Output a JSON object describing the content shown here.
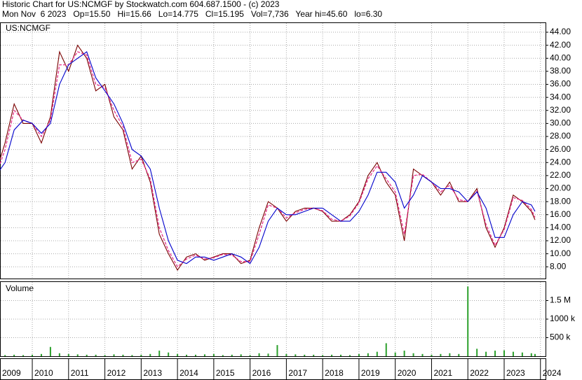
{
  "header": {
    "line1": "Historic Chart for US:NCMGF by Stockwatch.com 604.687.1500 - (c) 2023",
    "line2": "Mon Nov  6 2023   Op=15.50   Hi=15.66   Lo=14.775   Cl=15.195   Vol=7,736   Year hi=45.60   lo=6.30"
  },
  "chart_data": [
    {
      "type": "line",
      "label": "US:NCMGF",
      "x": [
        2009.0,
        2009.25,
        2009.5,
        2009.75,
        2010.0,
        2010.25,
        2010.5,
        2010.75,
        2011.0,
        2011.25,
        2011.5,
        2011.75,
        2012.0,
        2012.25,
        2012.5,
        2012.75,
        2013.0,
        2013.25,
        2013.5,
        2013.75,
        2014.0,
        2014.25,
        2014.5,
        2014.75,
        2015.0,
        2015.25,
        2015.5,
        2015.75,
        2016.0,
        2016.25,
        2016.5,
        2016.75,
        2017.0,
        2017.25,
        2017.5,
        2017.75,
        2018.0,
        2018.25,
        2018.5,
        2018.75,
        2019.0,
        2019.25,
        2019.5,
        2019.75,
        2020.0,
        2020.25,
        2020.5,
        2020.75,
        2021.0,
        2021.25,
        2021.5,
        2021.75,
        2022.0,
        2022.25,
        2022.5,
        2022.75,
        2023.0,
        2023.25,
        2023.5,
        2023.75,
        2023.85
      ],
      "series": [
        {
          "color": "#7a0000",
          "values": [
            22.5,
            27,
            33,
            30,
            30,
            27,
            31,
            41,
            38,
            42,
            40,
            35,
            36,
            31,
            29,
            23,
            25,
            21,
            13,
            10,
            7.5,
            9.5,
            10,
            9,
            9.5,
            10,
            10,
            8.5,
            9,
            14,
            18,
            17,
            15,
            16.5,
            17,
            17,
            16.5,
            15,
            15,
            16,
            18,
            22,
            24,
            21,
            19,
            12,
            23,
            22,
            21,
            19,
            21,
            18,
            18,
            20,
            14,
            11,
            14,
            19,
            18,
            16.5,
            15.2
          ]
        },
        {
          "color": "#e8308a",
          "values": [
            22,
            26,
            32,
            30.5,
            30,
            28,
            30.5,
            39,
            39,
            41,
            40.5,
            36,
            35.5,
            32,
            29.5,
            24,
            24.5,
            21.5,
            14,
            10.5,
            8,
            9.2,
            9.8,
            9.2,
            9.4,
            9.9,
            9.8,
            8.8,
            8.8,
            13,
            17.5,
            17,
            15.5,
            16.3,
            16.8,
            17,
            16.6,
            15.3,
            15,
            15.8,
            17.8,
            21.5,
            23.5,
            21.5,
            19.5,
            13,
            22,
            22.2,
            21,
            19.5,
            20.5,
            18.3,
            18,
            19.6,
            14.5,
            11.3,
            13.7,
            18.6,
            18.2,
            16.8,
            15.6
          ]
        },
        {
          "color": "#0000cc",
          "values": [
            22,
            24,
            29,
            30.5,
            30,
            28.5,
            30,
            36,
            39,
            40,
            41,
            37,
            35,
            33,
            30,
            26,
            25,
            23,
            17,
            12,
            9,
            8.5,
            9.5,
            9.5,
            9,
            9.5,
            10,
            9.5,
            8.5,
            11,
            15,
            17,
            16,
            16,
            16.5,
            17,
            17,
            16,
            15,
            15,
            16.5,
            19,
            22.5,
            22.5,
            21,
            17,
            19,
            22,
            21,
            20,
            20,
            19.5,
            18,
            19.5,
            17,
            12.5,
            12.5,
            16,
            18,
            17.5,
            16.5
          ]
        }
      ],
      "xlim": [
        2009.13,
        2024.14
      ],
      "xticks": [
        2009,
        2010,
        2011,
        2012,
        2013,
        2014,
        2015,
        2016,
        2017,
        2018,
        2019,
        2020,
        2021,
        2022,
        2023,
        2024
      ],
      "ylim": [
        6.2,
        45.4
      ],
      "yticks": [
        {
          "value": 8,
          "label": "8.00"
        },
        {
          "value": 10,
          "label": "10.00"
        },
        {
          "value": 12,
          "label": "12.00"
        },
        {
          "value": 14,
          "label": "14.00"
        },
        {
          "value": 16,
          "label": "16.00"
        },
        {
          "value": 18,
          "label": "18.00"
        },
        {
          "value": 20,
          "label": "20.00"
        },
        {
          "value": 22,
          "label": "22.00"
        },
        {
          "value": 24,
          "label": "24.00"
        },
        {
          "value": 26,
          "label": "26.00"
        },
        {
          "value": 28,
          "label": "28.00"
        },
        {
          "value": 30,
          "label": "30.00"
        },
        {
          "value": 32,
          "label": "32.00"
        },
        {
          "value": 34,
          "label": "34.00"
        },
        {
          "value": 36,
          "label": "36.00"
        },
        {
          "value": 38,
          "label": "38.00"
        },
        {
          "value": 40,
          "label": "40.00"
        },
        {
          "value": 42,
          "label": "42.00"
        },
        {
          "value": 44,
          "label": "44.00"
        }
      ],
      "grid": true
    },
    {
      "type": "bar",
      "label": "Volume",
      "color": "#2ca02c",
      "x": [
        2009.0,
        2009.25,
        2009.5,
        2009.75,
        2010.0,
        2010.25,
        2010.5,
        2010.75,
        2011.0,
        2011.25,
        2011.5,
        2011.75,
        2012.0,
        2012.25,
        2012.5,
        2012.75,
        2013.0,
        2013.25,
        2013.5,
        2013.75,
        2014.0,
        2014.25,
        2014.5,
        2014.75,
        2015.0,
        2015.25,
        2015.5,
        2015.75,
        2016.0,
        2016.25,
        2016.5,
        2016.75,
        2017.0,
        2017.25,
        2017.5,
        2017.75,
        2018.0,
        2018.25,
        2018.5,
        2018.75,
        2019.0,
        2019.25,
        2019.5,
        2019.75,
        2020.0,
        2020.25,
        2020.5,
        2020.75,
        2021.0,
        2021.25,
        2021.5,
        2021.75,
        2022.0,
        2022.25,
        2022.5,
        2022.75,
        2023.0,
        2023.25,
        2023.5,
        2023.75,
        2023.85
      ],
      "values": [
        20000,
        30000,
        40000,
        30000,
        40000,
        60000,
        250000,
        80000,
        60000,
        50000,
        40000,
        40000,
        30000,
        50000,
        40000,
        30000,
        40000,
        60000,
        150000,
        100000,
        60000,
        40000,
        40000,
        50000,
        60000,
        30000,
        40000,
        50000,
        30000,
        80000,
        70000,
        300000,
        60000,
        50000,
        40000,
        40000,
        30000,
        40000,
        40000,
        30000,
        60000,
        80000,
        120000,
        350000,
        100000,
        150000,
        80000,
        60000,
        40000,
        60000,
        80000,
        60000,
        1880000,
        200000,
        120000,
        150000,
        160000,
        120000,
        100000,
        80000,
        60000
      ],
      "ylim": [
        0,
        2000000
      ],
      "yticks": [
        {
          "value": 500000,
          "label": "500 k"
        },
        {
          "value": 1000000,
          "label": "1000 k"
        },
        {
          "value": 1500000,
          "label": "1.5 M"
        }
      ],
      "grid": true
    }
  ]
}
